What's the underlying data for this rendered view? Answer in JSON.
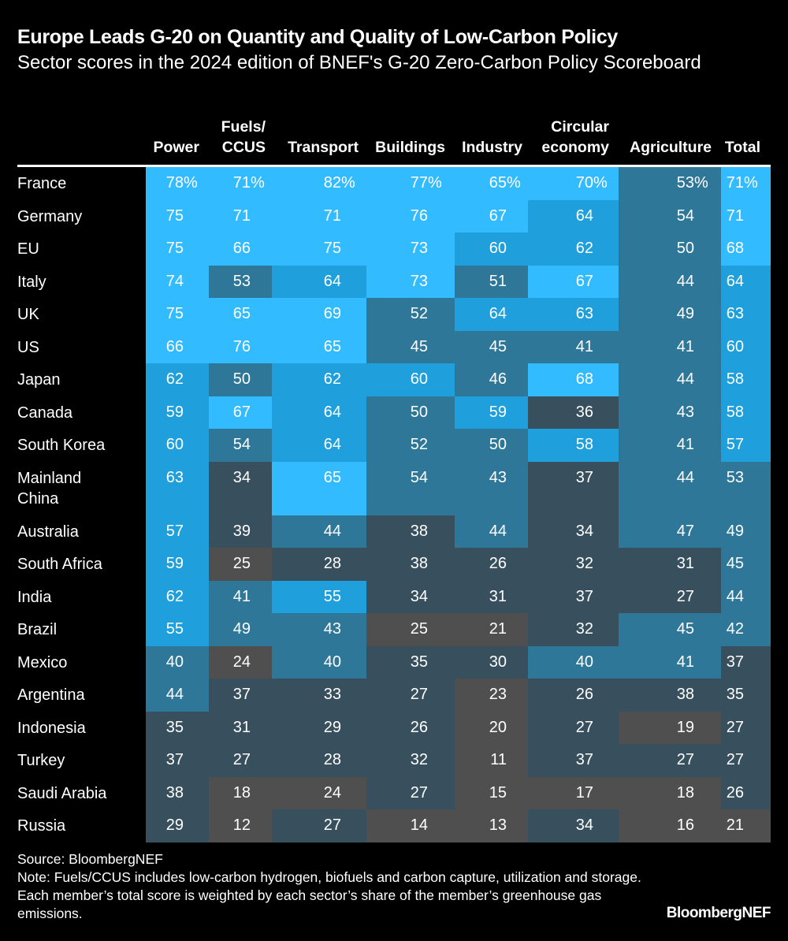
{
  "header": {
    "title": "Europe Leads G-20 on Quantity and Quality of Low-Carbon Policy",
    "subtitle": "Sector scores in the 2024 edition of BNEF's G-20 Zero-Carbon Policy Scoreboard"
  },
  "chart_data": {
    "type": "heatmap",
    "columns": [
      {
        "line1": "",
        "line2": "Power"
      },
      {
        "line1": "Fuels/",
        "line2": "CCUS"
      },
      {
        "line1": "",
        "line2": "Transport"
      },
      {
        "line1": "",
        "line2": "Buildings"
      },
      {
        "line1": "",
        "line2": "Industry"
      },
      {
        "line1": "Circular",
        "line2": "economy"
      },
      {
        "line1": "",
        "line2": "Agriculture"
      },
      {
        "line1": "",
        "line2": "Total"
      }
    ],
    "first_row_suffix": "%",
    "rows": [
      {
        "label": "France",
        "values": [
          78,
          71,
          82,
          77,
          65,
          70,
          53,
          71
        ]
      },
      {
        "label": "Germany",
        "values": [
          75,
          71,
          71,
          76,
          67,
          64,
          54,
          71
        ]
      },
      {
        "label": "EU",
        "values": [
          75,
          66,
          75,
          73,
          60,
          62,
          50,
          68
        ]
      },
      {
        "label": "Italy",
        "values": [
          74,
          53,
          64,
          73,
          51,
          67,
          44,
          64
        ]
      },
      {
        "label": "UK",
        "values": [
          75,
          65,
          69,
          52,
          64,
          63,
          49,
          63
        ]
      },
      {
        "label": "US",
        "values": [
          66,
          76,
          65,
          45,
          45,
          41,
          41,
          60
        ]
      },
      {
        "label": "Japan",
        "values": [
          62,
          50,
          62,
          60,
          46,
          68,
          44,
          58
        ]
      },
      {
        "label": "Canada",
        "values": [
          59,
          67,
          64,
          50,
          59,
          36,
          43,
          58
        ]
      },
      {
        "label": "South Korea",
        "values": [
          60,
          54,
          64,
          52,
          50,
          58,
          41,
          57
        ]
      },
      {
        "label": "Mainland China",
        "values": [
          63,
          34,
          65,
          54,
          43,
          37,
          44,
          53
        ]
      },
      {
        "label": "Australia",
        "values": [
          57,
          39,
          44,
          38,
          44,
          34,
          47,
          49
        ]
      },
      {
        "label": "South Africa",
        "values": [
          59,
          25,
          28,
          38,
          26,
          32,
          31,
          45
        ]
      },
      {
        "label": "India",
        "values": [
          62,
          41,
          55,
          34,
          31,
          37,
          27,
          44
        ]
      },
      {
        "label": "Brazil",
        "values": [
          55,
          49,
          43,
          25,
          21,
          32,
          45,
          42
        ]
      },
      {
        "label": "Mexico",
        "values": [
          40,
          24,
          40,
          35,
          30,
          40,
          41,
          37
        ]
      },
      {
        "label": "Argentina",
        "values": [
          44,
          37,
          33,
          27,
          23,
          26,
          38,
          35
        ]
      },
      {
        "label": "Indonesia",
        "values": [
          35,
          31,
          29,
          26,
          20,
          27,
          19,
          27
        ]
      },
      {
        "label": "Turkey",
        "values": [
          37,
          27,
          28,
          32,
          11,
          37,
          27,
          27
        ]
      },
      {
        "label": "Saudi Arabia",
        "values": [
          38,
          18,
          24,
          27,
          15,
          17,
          18,
          26
        ]
      },
      {
        "label": "Russia",
        "values": [
          29,
          12,
          27,
          14,
          13,
          34,
          16,
          21
        ]
      }
    ],
    "color_scale": [
      {
        "min": 65,
        "color": "#33bbff"
      },
      {
        "min": 55,
        "color": "#1f9fdb"
      },
      {
        "min": 40,
        "color": "#2e7799"
      },
      {
        "min": 26,
        "color": "#38505e"
      },
      {
        "min": 0,
        "color": "#4f4f4f"
      }
    ]
  },
  "footer": {
    "source": "Source: BloombergNEF",
    "note": "Note: Fuels/CCUS includes low-carbon hydrogen, biofuels and carbon capture, utilization and storage. Each member’s total score is weighted by each sector’s share of the member’s greenhouse gas emissions.",
    "logo": "BloombergNEF"
  }
}
